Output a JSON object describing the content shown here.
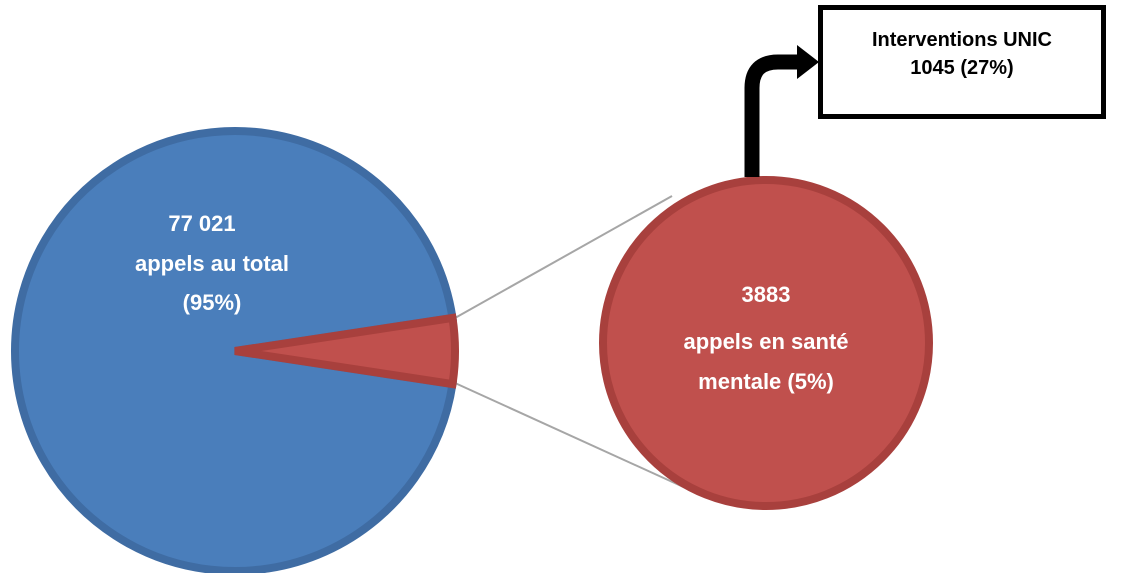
{
  "colors": {
    "total": "#4a7ebb",
    "total_edge": "#3f6ca3",
    "mental": "#c0504d",
    "mental_edge": "#a8403d",
    "connector": "#a6a6a6",
    "arrow": "#000000"
  },
  "chart_data": {
    "type": "pie",
    "categories": [
      "appels au total",
      "appels en santé mentale"
    ],
    "values": [
      77021,
      3883
    ],
    "percentages": [
      95,
      5
    ],
    "labels": {
      "total": {
        "value": "77 021",
        "line2": "appels au total",
        "line3": "(95%)"
      },
      "mental": {
        "value": "3883",
        "line2": "appels en santé",
        "line3": "mentale (5%)"
      }
    },
    "sub_breakdown": {
      "label": "Interventions UNIC",
      "value": 1045,
      "percent": 27,
      "text_line1": "Interventions UNIC",
      "text_line2": "1045 (27%)"
    }
  }
}
